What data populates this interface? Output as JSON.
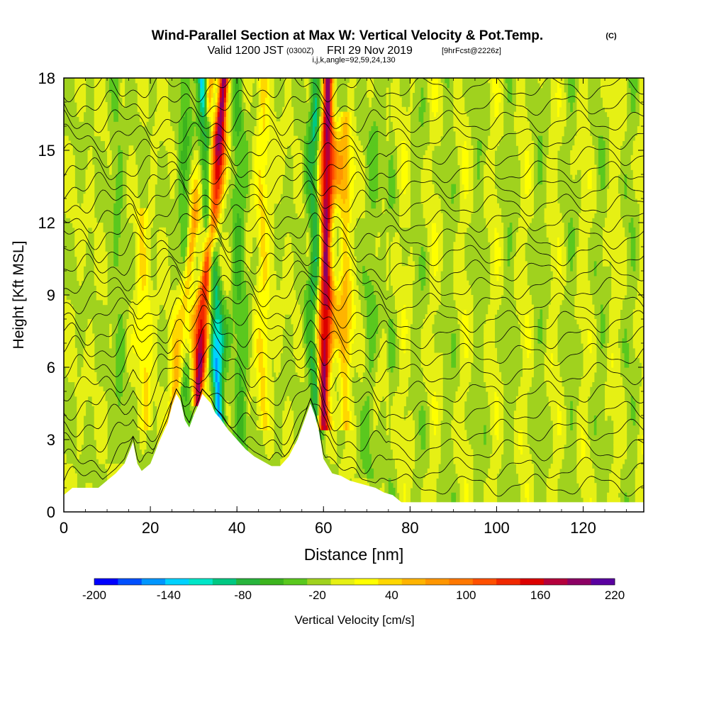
{
  "chart_data": {
    "type": "heatmap",
    "title": "Wind-Parallel Section at Max W: Vertical Velocity & Pot.Temp.",
    "title_mark": "(C)",
    "subtitle_prefix": "Valid 1200 JST",
    "subtitle_utc": "(0300Z)",
    "subtitle_date": "FRI 29 Nov 2019",
    "subtitle_fcst": "[9hrFcst@2226z]",
    "subtitle2": "i,j,k,angle=92,59,24,130",
    "xlabel": "Distance [nm]",
    "ylabel": "Height [Kft MSL]",
    "xlim": [
      0,
      134
    ],
    "ylim": [
      0,
      18
    ],
    "xticks": [
      "0",
      "20",
      "40",
      "60",
      "80",
      "100",
      "120"
    ],
    "yticks": [
      "0",
      "3",
      "6",
      "9",
      "12",
      "15",
      "18"
    ],
    "colorbar": {
      "label": "Vertical Velocity [cm/s]",
      "tick_labels": [
        "-200",
        "-140",
        "-80",
        "-20",
        "40",
        "100",
        "160",
        "220"
      ],
      "colors": [
        "#0000ff",
        "#0050ff",
        "#0096ff",
        "#00d2ff",
        "#00e6c8",
        "#00c882",
        "#28b43c",
        "#3cb41e",
        "#5ac81e",
        "#a0d21e",
        "#e6f014",
        "#ffff00",
        "#ffd700",
        "#ffb400",
        "#ff9600",
        "#ff7800",
        "#ff5000",
        "#f02800",
        "#dc0000",
        "#b4003c",
        "#8c0064",
        "#5a00a0"
      ]
    },
    "terrain_profile_x": [
      0,
      2,
      4,
      6,
      8,
      10,
      12,
      14,
      16,
      17,
      18,
      20,
      22,
      24,
      25,
      26,
      27,
      28,
      29,
      30,
      31,
      32,
      33,
      34,
      35,
      36,
      38,
      40,
      42,
      44,
      46,
      48,
      50,
      52,
      54,
      55,
      56,
      57,
      58,
      59,
      60,
      62,
      64,
      66,
      68,
      70,
      72,
      74,
      76,
      78,
      80,
      84,
      90,
      100,
      110,
      120,
      134
    ],
    "terrain_profile_z": [
      0.7,
      1.0,
      1.0,
      1.0,
      1.0,
      1.3,
      1.6,
      2.0,
      2.9,
      2.0,
      1.7,
      2.0,
      2.9,
      3.7,
      4.4,
      4.9,
      4.6,
      3.8,
      3.5,
      4.0,
      4.4,
      4.9,
      4.7,
      4.5,
      4.1,
      3.9,
      3.4,
      3.0,
      2.6,
      2.3,
      2.1,
      1.9,
      1.9,
      2.3,
      3.0,
      3.5,
      4.0,
      4.5,
      4.0,
      3.3,
      2.2,
      1.6,
      1.5,
      1.3,
      1.2,
      1.1,
      1.0,
      0.8,
      0.7,
      0.4,
      0.4,
      0.4,
      0.4,
      0.4,
      0.4,
      0.4,
      0.4
    ],
    "updraft_bands": [
      {
        "x_base": 25,
        "z_base": 4,
        "x_top": 34,
        "z_top": 18,
        "w": 80
      },
      {
        "x_base": 31,
        "z_base": 5,
        "x_top": 37,
        "z_top": 18,
        "w": 200
      },
      {
        "x_base": 60,
        "z_base": 4,
        "x_top": 61,
        "z_top": 18,
        "w": 200
      },
      {
        "x_base": 46,
        "z_base": 4,
        "x_top": 46,
        "z_top": 18,
        "w": 40
      },
      {
        "x_base": 65,
        "z_base": 4,
        "x_top": 65,
        "z_top": 16,
        "w": 60
      },
      {
        "x_base": 19,
        "z_base": 4,
        "x_top": 18,
        "z_top": 12,
        "w": 40
      }
    ],
    "downdraft_bands": [
      {
        "x_base": 36,
        "z_base": 3.5,
        "x_top": 32,
        "z_top": 18,
        "w": -140
      },
      {
        "x_base": 58,
        "z_base": 3.5,
        "x_top": 58,
        "z_top": 18,
        "w": -80
      },
      {
        "x_base": 41,
        "z_base": 2.5,
        "x_top": 40,
        "z_top": 18,
        "w": -40
      },
      {
        "x_base": 28,
        "z_base": 2.5,
        "x_top": 28,
        "z_top": 18,
        "w": -40
      },
      {
        "x_base": 13,
        "z_base": 2.5,
        "x_top": 12,
        "z_top": 18,
        "w": -20
      },
      {
        "x_base": 70,
        "z_base": 2.0,
        "x_top": 72,
        "z_top": 18,
        "w": -20
      }
    ],
    "theta_contour_levels_z": [
      0.9,
      1.6,
      2.4,
      3.2,
      4.0,
      4.8,
      5.6,
      6.4,
      7.1,
      7.8,
      8.5,
      9.2,
      9.9,
      10.6,
      11.3,
      12.0,
      12.7,
      13.4,
      14.1,
      14.8,
      15.5,
      16.2,
      16.9,
      17.6
    ]
  }
}
